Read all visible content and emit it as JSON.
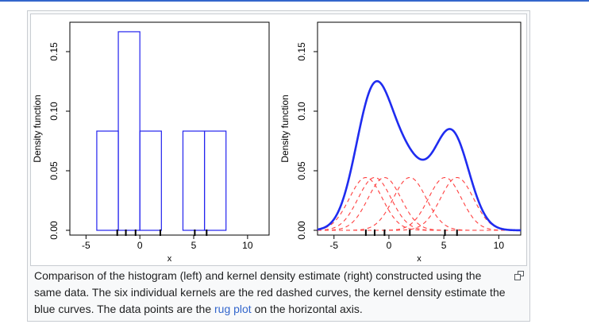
{
  "caption": {
    "text_before_link": "Comparison of the histogram (left) and kernel density estimate (right) constructed using the same data. The six individual kernels are the red dashed curves, the kernel density estimate the blue curves. The data points are the ",
    "link_text": "rug plot",
    "text_after_link": " on the horizontal axis."
  },
  "icons": {
    "magnify": "magnify-clip-icon"
  },
  "colors": {
    "accent": "#3366cc",
    "histogram": "#2222ee",
    "kde": "#1f2cf0",
    "kernel": "#ff4040",
    "rug": "#000000"
  },
  "chart_data": [
    {
      "type": "bar",
      "xlabel": "x",
      "ylabel": "Density function",
      "xlim": [
        -6.5,
        12
      ],
      "ylim": [
        0,
        0.17
      ],
      "x_ticks": [
        -5,
        0,
        5,
        10
      ],
      "x_tick_labels": [
        "-5",
        "0",
        "5",
        "10"
      ],
      "y_ticks": [
        0,
        0.05,
        0.1,
        0.15
      ],
      "y_tick_labels": [
        "0.00",
        "0.05",
        "0.10",
        "0.15"
      ],
      "bins": [
        {
          "x0": -4,
          "x1": -2,
          "density": 0.0833
        },
        {
          "x0": -2,
          "x1": 0,
          "density": 0.1667
        },
        {
          "x0": 0,
          "x1": 2,
          "density": 0.0833
        },
        {
          "x0": 2,
          "x1": 4,
          "density": 0
        },
        {
          "x0": 4,
          "x1": 6,
          "density": 0.0833
        },
        {
          "x0": 6,
          "x1": 8,
          "density": 0.0833
        }
      ],
      "rug": [
        -2.1,
        -1.3,
        -0.4,
        1.9,
        5.1,
        6.2
      ],
      "grid": false,
      "legend": "none"
    },
    {
      "type": "line",
      "xlabel": "x",
      "ylabel": "Density function",
      "xlim": [
        -6.5,
        12
      ],
      "ylim": [
        0,
        0.17
      ],
      "x_ticks": [
        -5,
        0,
        5,
        10
      ],
      "x_tick_labels": [
        "-5",
        "0",
        "5",
        "10"
      ],
      "y_ticks": [
        0,
        0.05,
        0.1,
        0.15
      ],
      "y_tick_labels": [
        "0.00",
        "0.05",
        "0.10",
        "0.15"
      ],
      "kernel": "gaussian",
      "bandwidth": 1.5,
      "data_points": [
        -2.1,
        -1.3,
        -0.4,
        1.9,
        5.1,
        6.2
      ],
      "rug": [
        -2.1,
        -1.3,
        -0.4,
        1.9,
        5.1,
        6.2
      ],
      "series": [
        {
          "style": "solid",
          "color": "#1f2cf0"
        },
        {
          "style": "dashed",
          "color": "#ff4040"
        }
      ],
      "grid": false,
      "legend": "none"
    }
  ]
}
